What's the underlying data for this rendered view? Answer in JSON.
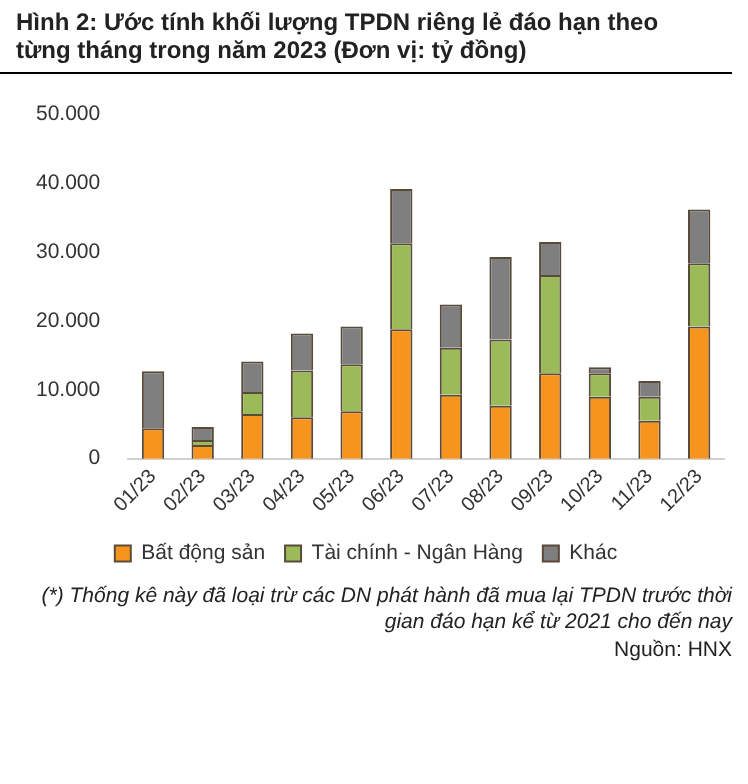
{
  "chart_data": {
    "type": "bar",
    "title": "Hình 2: Ước tính khối lượng TPDN riêng lẻ đáo hạn theo từng tháng trong năm 2023 (Đơn vị: tỷ đồng)",
    "categories": [
      "01/23",
      "02/23",
      "03/23",
      "04/23",
      "05/23",
      "06/23",
      "07/23",
      "08/23",
      "09/23",
      "10/23",
      "11/23",
      "12/23"
    ],
    "stacked": true,
    "series": [
      {
        "name": "Bất động sản",
        "color": "#f7941d",
        "values": [
          4400,
          2000,
          6500,
          6000,
          6900,
          18800,
          9300,
          7700,
          12400,
          9000,
          5500,
          19200
        ]
      },
      {
        "name": "Tài chính - Ngân Hàng",
        "color": "#9bbb59",
        "values": [
          0,
          700,
          3200,
          6800,
          6800,
          12500,
          6800,
          9600,
          14300,
          3400,
          3500,
          9200
        ]
      },
      {
        "name": "Khác",
        "color": "#7f7f7f",
        "values": [
          8300,
          1900,
          4400,
          5400,
          5500,
          7900,
          6300,
          12000,
          4800,
          900,
          2300,
          7800
        ]
      }
    ],
    "ylim": [
      0,
      50000
    ],
    "yticks": [
      {
        "value": 0,
        "label": "0"
      },
      {
        "value": 10000,
        "label": "10.000"
      },
      {
        "value": 20000,
        "label": "20.000"
      },
      {
        "value": 30000,
        "label": "30.000"
      },
      {
        "value": 40000,
        "label": "40.000"
      },
      {
        "value": 50000,
        "label": "50.000"
      }
    ],
    "grid": false,
    "legend": "bottom",
    "annotations": [
      "(*) Thống kê này đã loại trừ các DN phát hành đã mua lại TPDN trước thời gian đáo hạn kể từ 2021 cho đến nay",
      "Nguồn: HNX"
    ]
  }
}
